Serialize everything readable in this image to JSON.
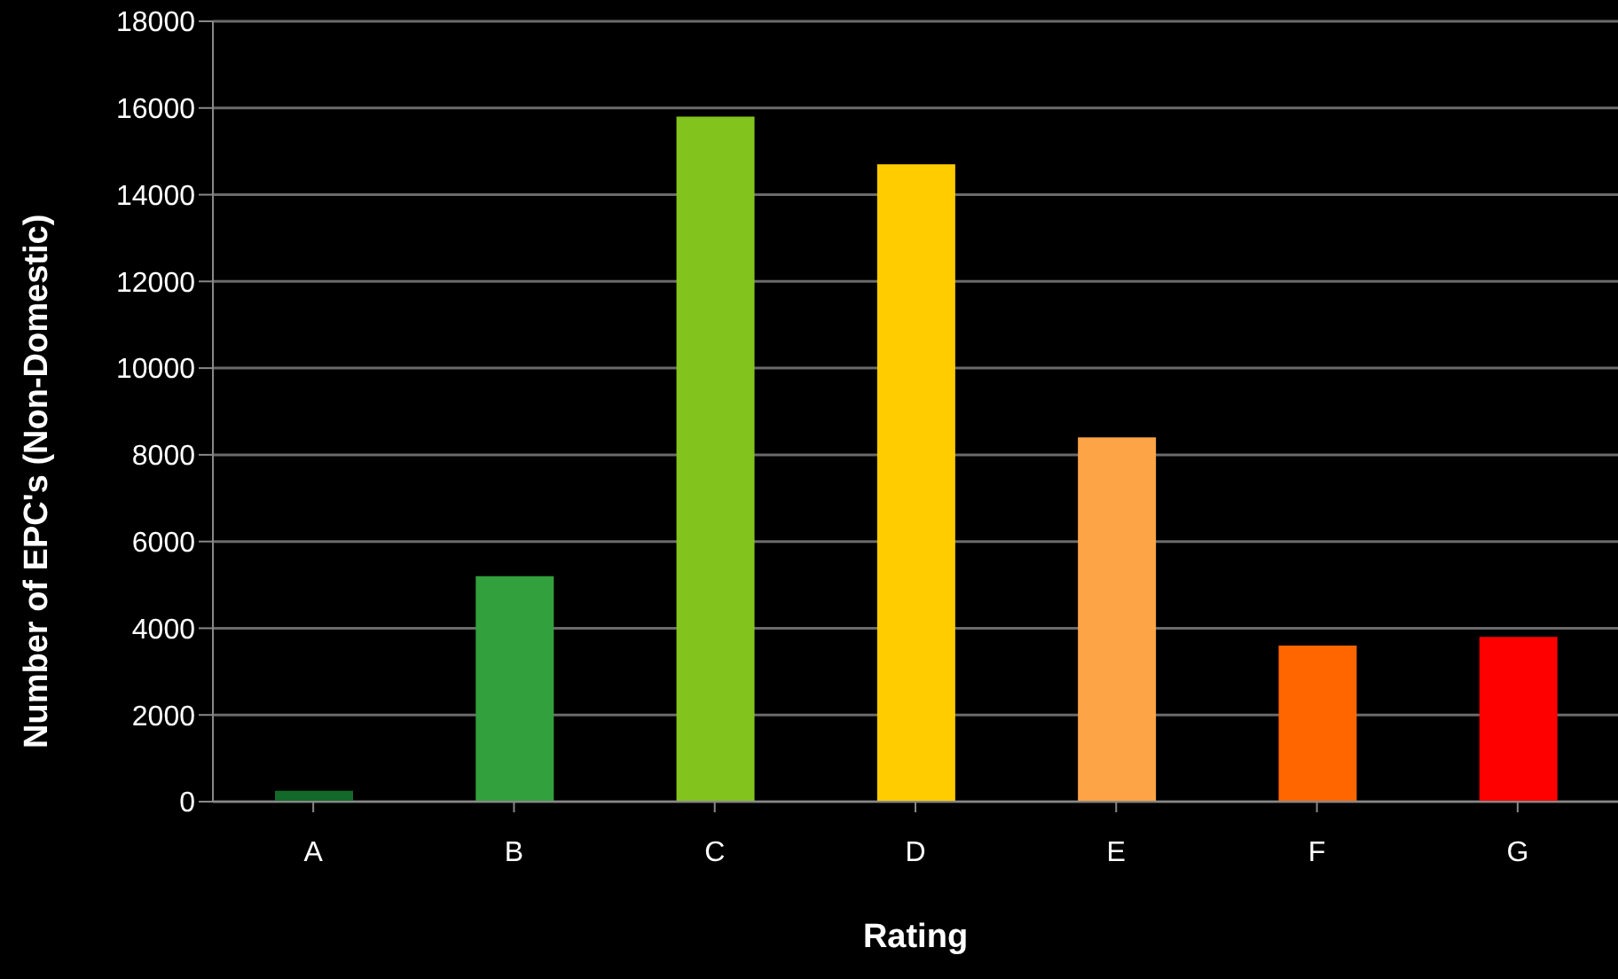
{
  "chart_data": {
    "type": "bar",
    "xlabel": "Rating",
    "ylabel": "Number of EPC's (Non-Domestic)",
    "categories": [
      "A",
      "B",
      "C",
      "D",
      "E",
      "F",
      "G"
    ],
    "values": [
      250,
      5200,
      15800,
      14700,
      8400,
      3600,
      3800
    ],
    "colors": [
      "#12692a",
      "#32a03c",
      "#82c31e",
      "#ffcc00",
      "#fca446",
      "#ff6600",
      "#ff0000"
    ],
    "ylim": [
      0,
      18000
    ],
    "yticks": [
      0,
      2000,
      4000,
      6000,
      8000,
      10000,
      12000,
      14000,
      16000,
      18000
    ],
    "grid": "y",
    "legend": false
  }
}
